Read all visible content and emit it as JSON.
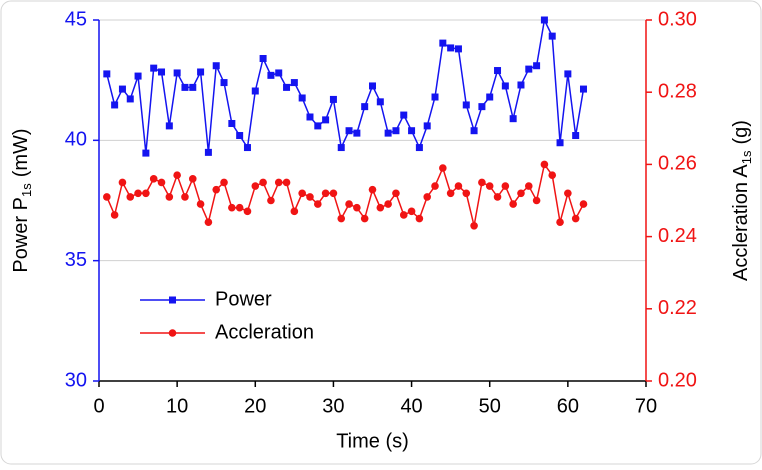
{
  "chart_data": {
    "type": "line",
    "xlabel": "Time (s)",
    "ylabel": {
      "main": "Power P",
      "sub": "1s",
      "unit": "(mW)"
    },
    "y2label": {
      "main": "Accleration A",
      "sub": "1s",
      "unit": "(g)"
    },
    "x": [
      1,
      2,
      3,
      4,
      5,
      6,
      7,
      8,
      9,
      10,
      11,
      12,
      13,
      14,
      15,
      16,
      17,
      18,
      19,
      20,
      21,
      22,
      23,
      24,
      25,
      26,
      27,
      28,
      29,
      30,
      31,
      32,
      33,
      34,
      35,
      36,
      37,
      38,
      39,
      40,
      41,
      42,
      43,
      44,
      45,
      46,
      47,
      48,
      49,
      50,
      51,
      52,
      53,
      54,
      55,
      56,
      57,
      58,
      59,
      60,
      61,
      62
    ],
    "series": [
      {
        "name": "Power",
        "color": "#1414f0",
        "marker": "square",
        "axis": "y",
        "values": [
          42.76,
          41.47,
          42.13,
          41.72,
          42.67,
          39.47,
          43.0,
          42.84,
          40.6,
          42.8,
          42.2,
          42.2,
          42.84,
          39.5,
          43.1,
          42.4,
          40.7,
          40.2,
          39.7,
          42.05,
          43.4,
          42.7,
          42.8,
          42.2,
          42.4,
          41.76,
          40.97,
          40.6,
          40.85,
          41.7,
          39.7,
          40.4,
          40.3,
          41.4,
          42.26,
          41.6,
          40.3,
          40.4,
          41.05,
          40.4,
          39.7,
          40.6,
          41.8,
          44.04,
          43.84,
          43.8,
          41.47,
          40.4,
          41.4,
          41.8,
          42.9,
          42.26,
          40.9,
          42.3,
          42.96,
          43.1,
          45.0,
          44.33,
          39.9,
          42.76,
          40.2,
          42.13
        ]
      },
      {
        "name": "Accleration",
        "color": "#f01414",
        "marker": "circle",
        "axis": "y2",
        "values": [
          0.251,
          0.246,
          0.255,
          0.251,
          0.252,
          0.252,
          0.256,
          0.255,
          0.251,
          0.257,
          0.251,
          0.256,
          0.249,
          0.244,
          0.253,
          0.255,
          0.248,
          0.248,
          0.247,
          0.254,
          0.255,
          0.25,
          0.255,
          0.255,
          0.247,
          0.252,
          0.251,
          0.249,
          0.252,
          0.252,
          0.245,
          0.249,
          0.248,
          0.245,
          0.253,
          0.248,
          0.249,
          0.252,
          0.246,
          0.247,
          0.245,
          0.251,
          0.254,
          0.259,
          0.252,
          0.254,
          0.252,
          0.243,
          0.255,
          0.254,
          0.251,
          0.254,
          0.249,
          0.252,
          0.254,
          0.25,
          0.26,
          0.257,
          0.244,
          0.252,
          0.245,
          0.249
        ]
      }
    ],
    "xlim": [
      0,
      70
    ],
    "xticks": [
      0,
      10,
      20,
      30,
      40,
      50,
      60,
      70
    ],
    "ylim": [
      30,
      45
    ],
    "yticks": [
      30,
      35,
      40,
      45
    ],
    "ycolor": "#1414f0",
    "y2lim": [
      0.2,
      0.3
    ],
    "y2ticks": [
      {
        "value": 0.2,
        "label": "0.20"
      },
      0.22,
      0.24,
      0.26,
      0.28,
      {
        "value": 0.3,
        "label": "0.30"
      }
    ],
    "y2color": "#f01414",
    "grid": true,
    "legend": "lower-left"
  }
}
